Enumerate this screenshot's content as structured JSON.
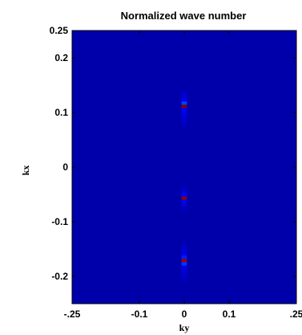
{
  "chart_data": {
    "type": "heatmap",
    "title": "Normalized wave number",
    "xlabel": "ky",
    "ylabel": "kx",
    "xlim": [
      -0.25,
      0.25
    ],
    "ylim": [
      -0.25,
      0.25
    ],
    "x_ticks": [
      {
        "value": -0.25,
        "label": "-.25"
      },
      {
        "value": -0.1,
        "label": "-0.1"
      },
      {
        "value": 0,
        "label": "0"
      },
      {
        "value": 0.1,
        "label": "0.1"
      },
      {
        "value": 0.25,
        "label": ".25"
      }
    ],
    "y_ticks": [
      {
        "value": 0.25,
        "label": "0.25"
      },
      {
        "value": 0.2,
        "label": "0.2"
      },
      {
        "value": 0.1,
        "label": "0.1"
      },
      {
        "value": 0,
        "label": "0"
      },
      {
        "value": -0.1,
        "label": "-0.1"
      },
      {
        "value": -0.2,
        "label": "-0.2"
      }
    ],
    "background_value": 0.05,
    "colormap": [
      "#00008f",
      "#0000ff",
      "#00ffff",
      "#ffff00",
      "#ff0000",
      "#800000"
    ],
    "cell": {
      "dx": 0.006,
      "dy": 0.006
    },
    "cells": [
      {
        "x": 0,
        "y": 0.135,
        "v": 0.12
      },
      {
        "x": 0,
        "y": 0.129,
        "v": 0.14
      },
      {
        "x": 0,
        "y": 0.123,
        "v": 0.17
      },
      {
        "x": 0,
        "y": 0.117,
        "v": 0.25
      },
      {
        "x": 0,
        "y": 0.111,
        "v": 1.0
      },
      {
        "x": 0,
        "y": 0.105,
        "v": 0.2
      },
      {
        "x": 0,
        "y": 0.099,
        "v": 0.16
      },
      {
        "x": 0,
        "y": 0.093,
        "v": 0.14
      },
      {
        "x": 0,
        "y": 0.087,
        "v": 0.12
      },
      {
        "x": 0,
        "y": 0.081,
        "v": 0.1
      },
      {
        "x": 0,
        "y": 0.075,
        "v": 0.08
      },
      {
        "x": 0,
        "y": -0.039,
        "v": 0.09
      },
      {
        "x": 0,
        "y": -0.045,
        "v": 0.12
      },
      {
        "x": 0,
        "y": -0.051,
        "v": 0.2
      },
      {
        "x": 0,
        "y": -0.057,
        "v": 0.98
      },
      {
        "x": 0,
        "y": -0.063,
        "v": 0.18
      },
      {
        "x": 0,
        "y": -0.069,
        "v": 0.12
      },
      {
        "x": 0,
        "y": -0.075,
        "v": 0.09
      },
      {
        "x": 0,
        "y": -0.141,
        "v": 0.09
      },
      {
        "x": 0,
        "y": -0.147,
        "v": 0.11
      },
      {
        "x": 0,
        "y": -0.153,
        "v": 0.13
      },
      {
        "x": 0,
        "y": -0.159,
        "v": 0.16
      },
      {
        "x": 0,
        "y": -0.165,
        "v": 0.22
      },
      {
        "x": 0,
        "y": -0.171,
        "v": 0.96
      },
      {
        "x": 0,
        "y": -0.177,
        "v": 0.24
      },
      {
        "x": 0,
        "y": -0.183,
        "v": 0.17
      },
      {
        "x": 0,
        "y": -0.189,
        "v": 0.14
      },
      {
        "x": 0,
        "y": -0.195,
        "v": 0.12
      },
      {
        "x": 0,
        "y": -0.201,
        "v": 0.1
      },
      {
        "x": 0,
        "y": -0.207,
        "v": 0.08
      }
    ],
    "grid": false,
    "colorbar": false
  }
}
